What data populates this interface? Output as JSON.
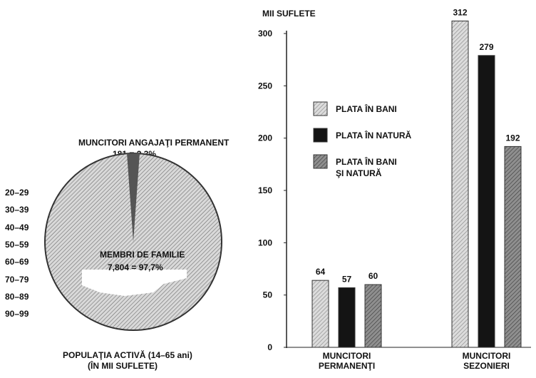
{
  "pie": {
    "slice_top_title": "MUNCITORI ANGAJAŢI PERMANENT",
    "slice_top_value": "181 = 2,3%",
    "center_title": "MEMBRI DE FAMILIE",
    "center_value": "7,804 = 97,7%",
    "caption_line1": "POPULAŢIA ACTIVĂ (14–65 ani)",
    "caption_line2": "(ÎN MII SUFLETE)",
    "age_groups": [
      "20–29",
      "30–39",
      "40–49",
      "50–59",
      "60–69",
      "70–79",
      "80–89",
      "90–99"
    ],
    "slices": [
      {
        "label": "MUNCITORI ANGAJAŢI PERMANENT",
        "value": 181,
        "percent": 2.3
      },
      {
        "label": "MEMBRI DE FAMILIE",
        "value": 7804,
        "percent": 97.7
      }
    ]
  },
  "chart_data": {
    "type": "bar",
    "ylabel": "MII SUFLETE",
    "ylim": [
      0,
      300
    ],
    "yticks": [
      0,
      50,
      100,
      150,
      200,
      250,
      300
    ],
    "categories": [
      "MUNCITORI PERMANENŢI",
      "MUNCITORI SEZONIERI"
    ],
    "category_lines": [
      [
        "MUNCITORI",
        "PERMANENŢI"
      ],
      [
        "MUNCITORI",
        "SEZONIERI"
      ]
    ],
    "series": [
      {
        "name": "PLATA ÎN BANI",
        "values": [
          64,
          312
        ],
        "color": "#bdbdbd"
      },
      {
        "name": "PLATA ÎN NATURĂ",
        "values": [
          57,
          279
        ],
        "color": "#141414"
      },
      {
        "name": "PLATA ÎN BANI ŞI NATURĂ",
        "values": [
          60,
          192
        ],
        "color": "#7a7a7a"
      }
    ],
    "legend_lines": [
      [
        "PLATA ÎN BANI"
      ],
      [
        "PLATA ÎN NATURĂ"
      ],
      [
        "PLATA ÎN BANI",
        "ŞI NATURĂ"
      ]
    ],
    "legend_position": "left-middle",
    "grid": false
  }
}
